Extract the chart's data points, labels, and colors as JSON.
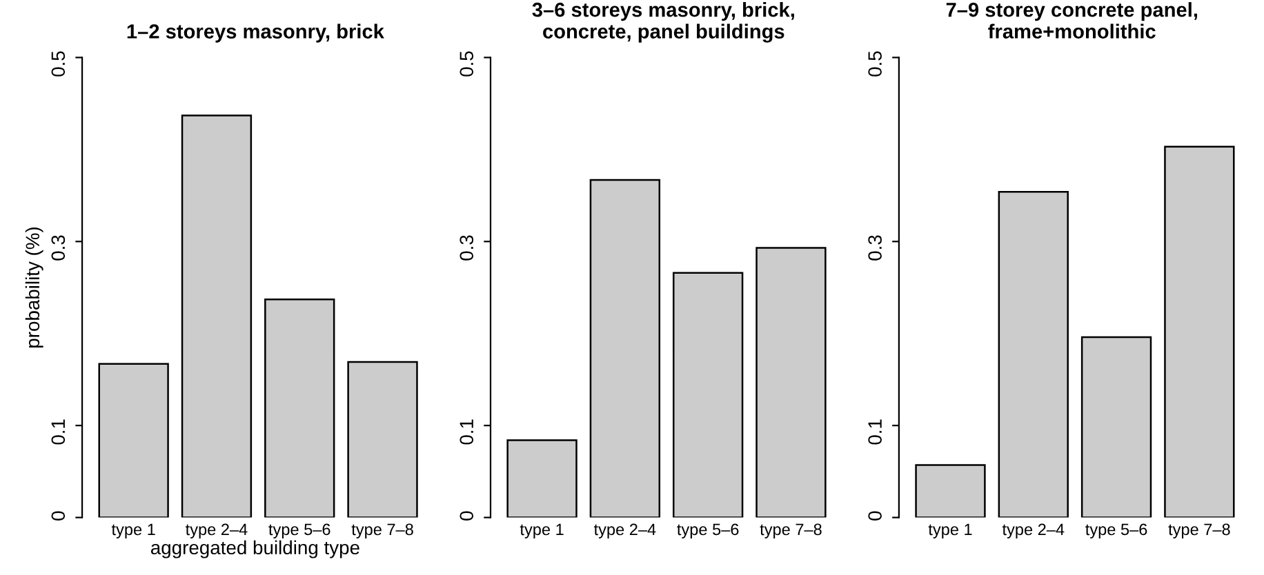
{
  "chart_data": [
    {
      "type": "bar",
      "title": "1–2 storeys masonry, brick",
      "xlabel": "aggregated building type",
      "ylabel": "probability (%)",
      "categories": [
        "type 1",
        "type 2–4",
        "type 5–6",
        "type 7–8"
      ],
      "values": [
        0.167,
        0.437,
        0.237,
        0.169
      ],
      "color": "#cccccc",
      "ylim": [
        0,
        0.5
      ],
      "yticks": [
        0,
        0.1,
        0.3,
        0.5
      ],
      "grid": false,
      "legend": false
    },
    {
      "type": "bar",
      "title": "3–6 storeys masonry, brick,\nconcrete, panel buildings",
      "categories": [
        "type 1",
        "type 2–4",
        "type 5–6",
        "type 7–8"
      ],
      "values": [
        0.084,
        0.367,
        0.266,
        0.293
      ],
      "color": "#cccccc",
      "ylim": [
        0,
        0.5
      ],
      "yticks": [
        0,
        0.1,
        0.3,
        0.5
      ],
      "grid": false,
      "legend": false
    },
    {
      "type": "bar",
      "title": "7–9 storey concrete panel,\nframe+monolithic",
      "categories": [
        "type 1",
        "type 2–4",
        "type 5–6",
        "type 7–8"
      ],
      "values": [
        0.057,
        0.354,
        0.196,
        0.403
      ],
      "color": "#cccccc",
      "ylim": [
        0,
        0.5
      ],
      "yticks": [
        0,
        0.1,
        0.3,
        0.5
      ],
      "grid": false,
      "legend": false
    }
  ]
}
